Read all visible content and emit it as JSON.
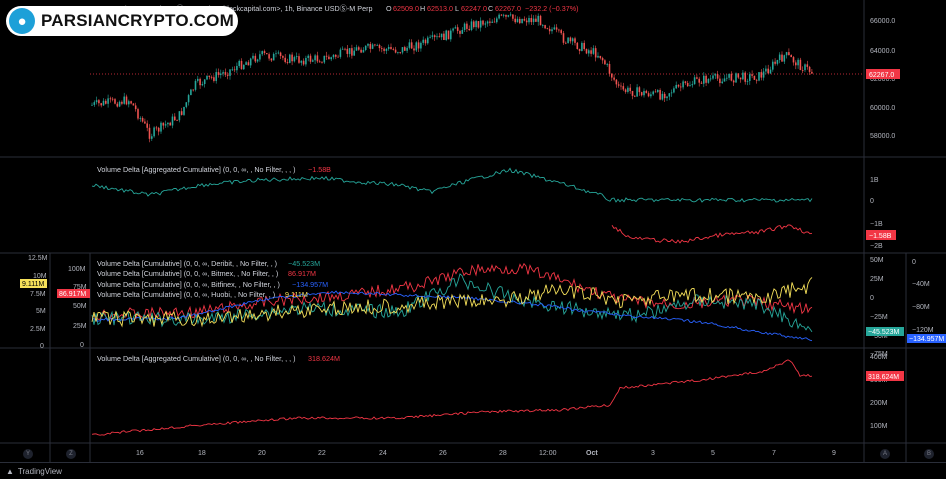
{
  "brand": {
    "logo_text": "PARSIANCRYPTO.COM"
  },
  "header": {
    "symbol": "BITCOIN / TETHER (USDⓈ-M Perp) <tvblockcapital.com>, 1h, Binance USDⓈ-M Perp",
    "ohlc": [
      {
        "k": "O",
        "v": "62509.0"
      },
      {
        "k": "H",
        "v": "62513.0"
      },
      {
        "k": "L",
        "v": "62247.0"
      },
      {
        "k": "C",
        "v": "62267.0"
      }
    ],
    "change": "−232.2 (−0.37%)"
  },
  "colors": {
    "up": "#26a69a",
    "down": "#ef5350",
    "yellow": "#f5e05a",
    "blue": "#2962ff",
    "green": "#26a69a",
    "red": "#f23645",
    "bg": "#000000"
  },
  "panes": {
    "price": {
      "ticks": [
        "66000.0",
        "64000.0",
        "62000.0",
        "60000.0",
        "58000.0"
      ],
      "current_label": "62267.0"
    },
    "agg_delta": {
      "legend": "Volume Delta [Aggregated Cumulative] (0, 0, ∞, , No Filter, , , )",
      "legend_value": "−1.58B",
      "ticks": [
        "1B",
        "0",
        "−1B",
        "−2B"
      ],
      "current_label": "−1.58B"
    },
    "multi_delta": {
      "legends": [
        {
          "text": "Volume Delta [Cumulative] (0, 0, ∞, Deribit, , No Filter, , )",
          "value": "−45.523M",
          "color": "#26a69a"
        },
        {
          "text": "Volume Delta [Cumulative] (0, 0, ∞, Bitmex, , No Filter, , )",
          "value": "86.917M",
          "color": "#f23645"
        },
        {
          "text": "Volume Delta [Cumulative] (0, 0, ∞, Bitfinex, , No Filter, , )",
          "value": "−134.957M",
          "color": "#2962ff"
        },
        {
          "text": "Volume Delta [Cumulative] (0, 0, ∞, Huobi, , No Filter, , )",
          "value": "9.111M",
          "color": "#f5e05a"
        }
      ],
      "left_ticks_a": [
        "12.5M",
        "10M",
        "7.5M",
        "5M",
        "2.5M",
        "0"
      ],
      "left_ticks_b": [
        "100M",
        "75M",
        "50M",
        "25M",
        "0"
      ],
      "right_ticks_a": [
        "50M",
        "25M",
        "0",
        "−25M",
        "−50M",
        "−75M"
      ],
      "right_ticks_b": [
        "0",
        "−40M",
        "−80M",
        "−120M"
      ],
      "tag_left_yellow": "9.111M",
      "tag_left_red": "86.917M",
      "tag_right_green": "−45.523M",
      "tag_right_blue": "−134.957M"
    },
    "agg_delta2": {
      "legend": "Volume Delta [Aggregated Cumulative] (0, 0, ∞, , No Filter, , , )",
      "legend_value": "318.624M",
      "ticks": [
        "400M",
        "300M",
        "200M",
        "100M"
      ],
      "current_label": "318.624M"
    }
  },
  "time_axis": [
    "16",
    "18",
    "20",
    "22",
    "24",
    "26",
    "28",
    "12:00",
    "Oct",
    "3",
    "5",
    "7",
    "9"
  ],
  "axis_buttons": {
    "y": "Y",
    "z": "Z",
    "a": "A",
    "b": "B"
  },
  "footer": {
    "brand": "TradingView"
  }
}
